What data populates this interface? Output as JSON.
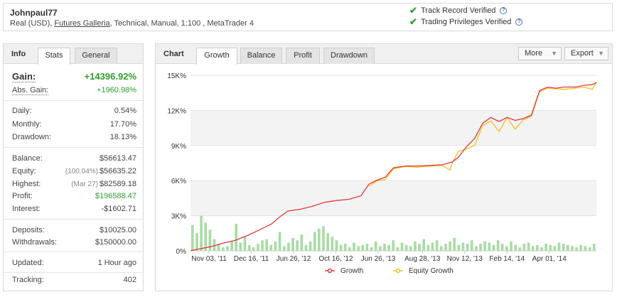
{
  "header": {
    "name": "Johnpaul77",
    "sub_prefix": "Real (USD), ",
    "broker": "Futures Galleria",
    "sub_suffix": ", Technical, Manual, 1:100 , MetaTrader 4",
    "verified_track": "Track Record Verified",
    "verified_privileges": "Trading Privileges Verified",
    "help_glyph": "?"
  },
  "info": {
    "title": "Info",
    "tabs": [
      "Stats",
      "General"
    ],
    "gain_label": "Gain:",
    "gain_value": "+14396.92%",
    "abs_gain_label": "Abs. Gain:",
    "abs_gain_value": "+1960.98%",
    "daily_label": "Daily:",
    "daily_value": "0.54%",
    "monthly_label": "Monthly:",
    "monthly_value": "17.70%",
    "drawdown_label": "Drawdown:",
    "drawdown_value": "18.13%",
    "balance_label": "Balance:",
    "balance_value": "$56613.47",
    "equity_label": "Equity:",
    "equity_pct": "(100.04%)",
    "equity_value": "$56635.22",
    "highest_label": "Highest:",
    "highest_date": "(Mar 27)",
    "highest_value": "$82589.18",
    "profit_label": "Profit:",
    "profit_value": "$196588.47",
    "interest_label": "Interest:",
    "interest_value": "-$1602.71",
    "deposits_label": "Deposits:",
    "deposits_value": "$10025.00",
    "withdrawals_label": "Withdrawals:",
    "withdrawals_value": "$150000.00",
    "updated_label": "Updated:",
    "updated_value": "1 Hour ago",
    "tracking_label": "Tracking:",
    "tracking_value": "402"
  },
  "chart_panel": {
    "title": "Chart",
    "tabs": [
      "Growth",
      "Balance",
      "Profit",
      "Drawdown"
    ],
    "active_tab": "Growth",
    "more_label": "More",
    "export_label": "Export"
  },
  "chart_data": {
    "type": "line",
    "y_ticks": [
      "15K%",
      "12K%",
      "9K%",
      "6K%",
      "3K%",
      "0%"
    ],
    "ylim": [
      0,
      15000
    ],
    "x_ticks": [
      "Nov 03, '11",
      "Dec 16, '11",
      "Jun 26, '12",
      "Oct 16, '12",
      "Jun 26, '13",
      "Aug 28, '13",
      "Nov 12, '13",
      "Feb 14, '14",
      "Apr 01, '14"
    ],
    "legend": [
      "Growth",
      "Equity Growth"
    ],
    "colors": {
      "growth": "#e03a3a",
      "equity": "#f0c020",
      "bars": "#a9dca5",
      "band": "#f3f3f3"
    },
    "series": [
      {
        "name": "Growth",
        "x": [
          0,
          0.02,
          0.05,
          0.08,
          0.11,
          0.14,
          0.17,
          0.2,
          0.22,
          0.24,
          0.27,
          0.3,
          0.33,
          0.36,
          0.39,
          0.42,
          0.44,
          0.46,
          0.48,
          0.5,
          0.53,
          0.56,
          0.59,
          0.62,
          0.645,
          0.66,
          0.68,
          0.7,
          0.72,
          0.74,
          0.76,
          0.78,
          0.8,
          0.82,
          0.84,
          0.86,
          0.88,
          0.9,
          0.92,
          0.95,
          0.97,
          0.99,
          1.0
        ],
        "values": [
          0,
          150,
          350,
          650,
          900,
          1300,
          1800,
          2300,
          2900,
          3400,
          3550,
          3800,
          4150,
          4300,
          4400,
          4700,
          5700,
          6050,
          6300,
          7100,
          7250,
          7250,
          7300,
          7350,
          7600,
          8000,
          8900,
          9600,
          10900,
          11400,
          11050,
          11400,
          11150,
          11300,
          11600,
          13700,
          14000,
          13900,
          14000,
          14000,
          14150,
          14200,
          14400
        ]
      },
      {
        "name": "Equity Growth",
        "x": [
          0.44,
          0.46,
          0.48,
          0.5,
          0.53,
          0.56,
          0.59,
          0.62,
          0.64,
          0.645,
          0.66,
          0.68,
          0.7,
          0.72,
          0.74,
          0.76,
          0.78,
          0.8,
          0.82,
          0.84,
          0.86,
          0.88,
          0.9,
          0.92,
          0.95,
          0.97,
          0.99,
          1.0
        ],
        "values": [
          5500,
          6000,
          6100,
          7000,
          7200,
          7150,
          7250,
          7300,
          6900,
          7500,
          8500,
          8700,
          9000,
          10700,
          11100,
          10200,
          11400,
          10400,
          11200,
          11500,
          13600,
          13900,
          13850,
          13800,
          13900,
          14000,
          13800,
          14400
        ]
      }
    ],
    "bars": [
      2.2,
      1.5,
      3.0,
      2.4,
      1.8,
      1.0,
      0.6,
      0.3,
      0.4,
      0.8,
      2.3,
      0.7,
      1.2,
      0.5,
      0.3,
      0.6,
      0.9,
      1.0,
      0.5,
      0.8,
      1.6,
      0.4,
      0.7,
      1.1,
      0.9,
      1.4,
      0.5,
      0.8,
      1.6,
      1.9,
      2.1,
      1.5,
      1.2,
      0.9,
      0.5,
      0.6,
      0.3,
      0.7,
      0.4,
      0.5,
      0.6,
      0.3,
      0.8,
      0.4,
      0.6,
      0.5,
      0.9,
      0.3,
      0.7,
      0.5,
      0.4,
      0.8,
      0.6,
      1.0,
      0.5,
      0.7,
      0.9,
      0.4,
      0.6,
      0.8,
      1.1,
      0.5,
      0.7,
      0.6,
      0.9,
      0.4,
      0.6,
      0.8,
      0.7,
      0.5,
      0.9,
      0.6,
      0.4,
      0.8,
      0.5,
      0.3,
      0.6,
      0.7,
      0.4,
      0.5,
      0.3,
      0.6,
      0.5,
      0.4,
      0.7,
      0.6,
      0.5,
      0.4,
      0.3,
      0.5,
      0.4,
      0.3,
      0.6
    ]
  }
}
